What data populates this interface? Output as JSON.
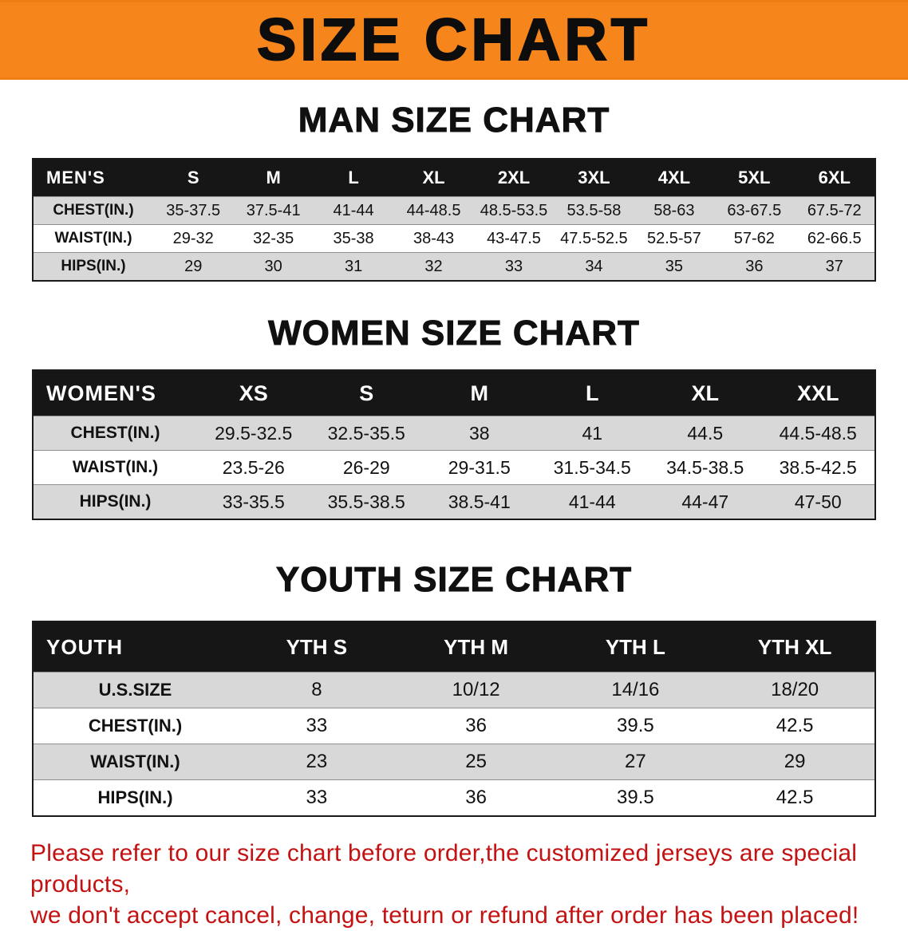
{
  "banner": {
    "title": "SIZE CHART"
  },
  "colors": {
    "banner_bg": "#f6851c",
    "table_header_bg": "#161616",
    "row_shade": "#d8d8d8",
    "disclaimer_red": "#c41212"
  },
  "man": {
    "heading": "MAN SIZE CHART",
    "table": {
      "header": [
        "MEN'S",
        "S",
        "M",
        "L",
        "XL",
        "2XL",
        "3XL",
        "4XL",
        "5XL",
        "6XL"
      ],
      "rows": [
        [
          "CHEST(IN.)",
          "35-37.5",
          "37.5-41",
          "41-44",
          "44-48.5",
          "48.5-53.5",
          "53.5-58",
          "58-63",
          "63-67.5",
          "67.5-72"
        ],
        [
          "WAIST(IN.)",
          "29-32",
          "32-35",
          "35-38",
          "38-43",
          "43-47.5",
          "47.5-52.5",
          "52.5-57",
          "57-62",
          "62-66.5"
        ],
        [
          "HIPS(IN.)",
          "29",
          "30",
          "31",
          "32",
          "33",
          "34",
          "35",
          "36",
          "37"
        ]
      ]
    }
  },
  "women": {
    "heading": "WOMEN SIZE CHART",
    "table": {
      "header": [
        "WOMEN'S",
        "XS",
        "S",
        "M",
        "L",
        "XL",
        "XXL"
      ],
      "rows": [
        [
          "CHEST(IN.)",
          "29.5-32.5",
          "32.5-35.5",
          "38",
          "41",
          "44.5",
          "44.5-48.5"
        ],
        [
          "WAIST(IN.)",
          "23.5-26",
          "26-29",
          "29-31.5",
          "31.5-34.5",
          "34.5-38.5",
          "38.5-42.5"
        ],
        [
          "HIPS(IN.)",
          "33-35.5",
          "35.5-38.5",
          "38.5-41",
          "41-44",
          "44-47",
          "47-50"
        ]
      ]
    }
  },
  "youth": {
    "heading": "YOUTH SIZE CHART",
    "table": {
      "header": [
        "YOUTH",
        "YTH S",
        "YTH M",
        "YTH L",
        "YTH XL"
      ],
      "rows": [
        [
          "U.S.SIZE",
          "8",
          "10/12",
          "14/16",
          "18/20"
        ],
        [
          "CHEST(IN.)",
          "33",
          "36",
          "39.5",
          "42.5"
        ],
        [
          "WAIST(IN.)",
          "23",
          "25",
          "27",
          "29"
        ],
        [
          "HIPS(IN.)",
          "33",
          "36",
          "39.5",
          "42.5"
        ]
      ]
    }
  },
  "disclaimer": {
    "line1": "Please refer to our size chart before order,the customized jerseys are special products,",
    "line2": "we don't accept cancel, change, teturn or refund after order has been placed!"
  }
}
